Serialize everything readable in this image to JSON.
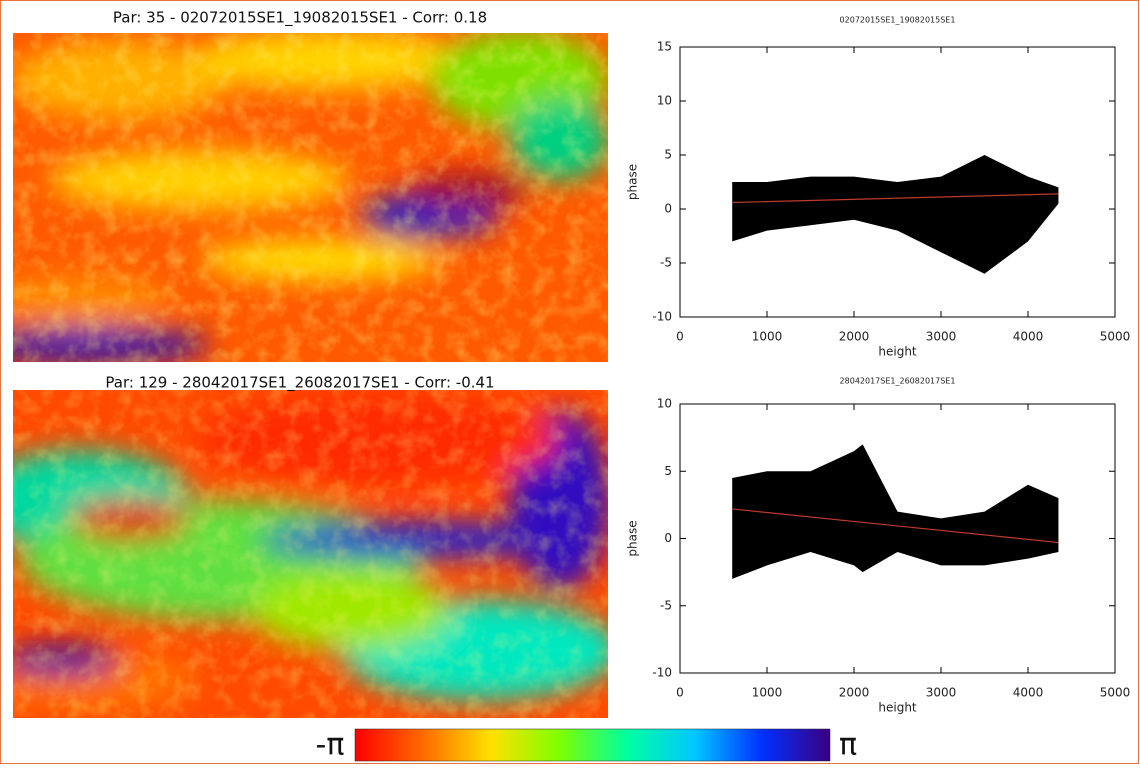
{
  "maps": [
    {
      "title": "Par: 35 - 02072015SE1_19082015SE1 - Corr: 0.18"
    },
    {
      "title": "Par: 129 - 28042017SE1_26082017SE1 - Corr: -0.41"
    }
  ],
  "colorbar": {
    "min_label": "-π",
    "max_label": "π",
    "colors": [
      "#ff0000",
      "#ff6a00",
      "#ffe000",
      "#7fff00",
      "#00ffa0",
      "#00c8ff",
      "#0030ff",
      "#3a0080"
    ]
  },
  "chart_data": [
    {
      "type": "scatter",
      "title": "02072015SE1_19082015SE1",
      "x_label": "height",
      "y_label": "phase",
      "xlim": [
        0,
        5000
      ],
      "xticks": [
        0,
        1000,
        2000,
        3000,
        4000,
        5000
      ],
      "ylim": [
        -10,
        15
      ],
      "yticks": [
        -10,
        -5,
        0,
        5,
        10,
        15
      ],
      "series": [
        {
          "kind": "band",
          "color": "#000000",
          "x": [
            600,
            1000,
            1500,
            2000,
            2500,
            3000,
            3500,
            4000,
            4350
          ],
          "upper": [
            2.5,
            2.5,
            3,
            3,
            2.5,
            3,
            5,
            3,
            2
          ],
          "lower": [
            -3,
            -2,
            -1.5,
            -1,
            -2,
            -4,
            -6,
            -3,
            0.5
          ]
        },
        {
          "kind": "line",
          "color": "#c0392b",
          "x": [
            600,
            4350
          ],
          "values": [
            0.6,
            1.4
          ]
        }
      ]
    },
    {
      "type": "scatter",
      "title": "28042017SE1_26082017SE1",
      "x_label": "height",
      "y_label": "phase",
      "xlim": [
        0,
        5000
      ],
      "xticks": [
        0,
        1000,
        2000,
        3000,
        4000,
        5000
      ],
      "ylim": [
        -10,
        10
      ],
      "yticks": [
        -10,
        -5,
        0,
        5,
        10
      ],
      "series": [
        {
          "kind": "band",
          "color": "#000000",
          "x": [
            600,
            1000,
            1500,
            2000,
            2100,
            2500,
            3000,
            3500,
            4000,
            4350
          ],
          "upper": [
            4.5,
            5,
            5,
            6.5,
            7,
            2,
            1.5,
            2,
            4,
            3
          ],
          "lower": [
            -3,
            -2,
            -1,
            -2,
            -2.5,
            -1,
            -2,
            -2,
            -1.5,
            -1
          ]
        },
        {
          "kind": "line",
          "color": "#c0392b",
          "x": [
            600,
            4350
          ],
          "values": [
            2.2,
            -0.3
          ]
        }
      ]
    }
  ]
}
